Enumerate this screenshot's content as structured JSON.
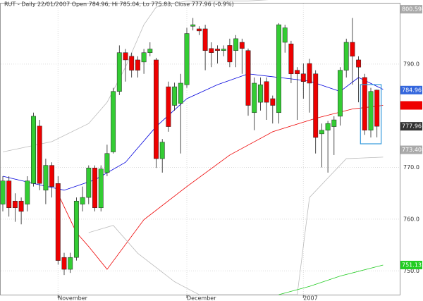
{
  "chart_data": {
    "type": "candlestick",
    "title": "RUT - Daily 22/01/2007 Open 784.96, Hi 785.04, Lo 775.83, Close 777.96 (-0.9%)",
    "up_color": "#33cc33",
    "down_color": "#ee0000",
    "ylim": [
      745.4,
      801.7
    ],
    "yticks": [
      {
        "value": 750,
        "label": "750.0"
      },
      {
        "value": 760,
        "label": "760.0"
      },
      {
        "value": 770,
        "label": "770.0"
      },
      {
        "value": 790,
        "label": "790.0"
      }
    ],
    "grid": true,
    "xlabels": [
      {
        "index": 9,
        "label": "November"
      },
      {
        "index": 30,
        "label": "December"
      },
      {
        "index": 49,
        "label": "2007"
      }
    ],
    "open": [
      762.9,
      767.4,
      763.5,
      763.5,
      762.9,
      766.9,
      778.0,
      765.6,
      770.4,
      766.9,
      752.6,
      750.3,
      752.6,
      762.9,
      764.2,
      769.9,
      762.2,
      769.0,
      773.0,
      784.7,
      792.2,
      791.5,
      790.8,
      790.4,
      792.2,
      790.8,
      771.7,
      785.6,
      782.0,
      782.4,
      786.0,
      797.3,
      796.8,
      796.8,
      793.0,
      792.9,
      792.6,
      793.6,
      792.6,
      794.2,
      792.6,
      780.6,
      782.6,
      786.6,
      783.3,
      780.6,
      794.2,
      793.9,
      788.8,
      788.1,
      790.1,
      788.1,
      776.5,
      777.2,
      777.9,
      779.9,
      788.8,
      794.2,
      790.8,
      787.4,
      777.2,
      784.96
    ],
    "high": [
      768.3,
      768.3,
      765.0,
      764.2,
      768.3,
      780.6,
      779.2,
      771.7,
      771.0,
      768.3,
      753.5,
      753.5,
      764.2,
      766.3,
      770.4,
      770.4,
      770.4,
      774.4,
      785.4,
      793.6,
      792.9,
      792.2,
      791.5,
      792.9,
      794.2,
      791.2,
      775.5,
      786.6,
      786.4,
      788.1,
      797.0,
      798.9,
      797.3,
      797.6,
      794.2,
      793.6,
      793.6,
      794.9,
      795.6,
      794.9,
      793.0,
      787.4,
      787.4,
      787.4,
      783.9,
      797.9,
      797.6,
      794.5,
      789.4,
      790.1,
      791.0,
      788.8,
      778.5,
      779.0,
      779.9,
      789.4,
      794.9,
      798.9,
      791.5,
      788.1,
      785.4,
      785.04
    ],
    "low": [
      761.5,
      760.5,
      759.5,
      759.0,
      761.5,
      766.3,
      765.6,
      762.9,
      764.2,
      751.2,
      749.2,
      749.6,
      752.0,
      761.5,
      762.9,
      761.5,
      761.5,
      768.3,
      772.7,
      784.0,
      786.6,
      787.4,
      787.4,
      788.1,
      791.5,
      769.9,
      769.0,
      776.9,
      781.0,
      772.7,
      785.4,
      796.5,
      795.6,
      788.8,
      789.4,
      790.1,
      791.5,
      789.4,
      789.4,
      788.1,
      780.0,
      777.2,
      781.0,
      779.2,
      778.5,
      778.5,
      792.2,
      786.3,
      779.2,
      783.3,
      780.6,
      772.7,
      770.0,
      769.0,
      772.4,
      778.1,
      787.4,
      786.0,
      782.6,
      776.3,
      775.8,
      775.83
    ],
    "close": [
      767.4,
      762.2,
      762.2,
      761.5,
      767.4,
      779.9,
      766.9,
      770.4,
      766.3,
      752.0,
      750.3,
      752.6,
      763.5,
      764.2,
      769.9,
      762.2,
      769.7,
      772.7,
      784.7,
      792.2,
      790.8,
      788.8,
      788.8,
      792.2,
      792.9,
      771.7,
      774.9,
      777.9,
      785.6,
      786.3,
      795.9,
      797.6,
      796.4,
      792.6,
      792.2,
      792.6,
      792.9,
      790.4,
      794.9,
      793.0,
      782.0,
      786.3,
      786.0,
      782.6,
      782.0,
      797.6,
      797.0,
      788.1,
      788.1,
      786.6,
      786.3,
      775.8,
      777.2,
      778.5,
      779.2,
      788.8,
      794.2,
      791.5,
      789.4,
      777.2,
      784.7,
      777.96
    ],
    "lines": [
      {
        "color": "#0000dd",
        "x": [
          0,
          5,
          10,
          15,
          20,
          25,
          30,
          35,
          40,
          45,
          50,
          55,
          58,
          62
        ],
        "values": [
          768.3,
          766.9,
          765.6,
          767.6,
          771.0,
          777.9,
          783.3,
          786.0,
          788.1,
          787.4,
          786.7,
          784.7,
          787.4,
          785.1
        ]
      },
      {
        "color": "#ee0000",
        "x": [
          9,
          12,
          14,
          17,
          23,
          30,
          37,
          44,
          51,
          57,
          62
        ],
        "values": [
          764.9,
          757.4,
          754.7,
          750.3,
          759.9,
          766.3,
          772.4,
          776.9,
          779.5,
          781.3,
          782.0
        ]
      },
      {
        "color": "#bbbbbb",
        "x": [
          0,
          8,
          14,
          17,
          20,
          23,
          25,
          30,
          40,
          50,
          55,
          62
        ],
        "values": [
          773.0,
          775.0,
          778.5,
          782.6,
          789.4,
          797.6,
          801.0,
          802.2,
          802.2,
          802.9,
          802.9,
          802.6
        ]
      },
      {
        "color": "#bbbbbb",
        "x": [
          14,
          18,
          22,
          28,
          32,
          48,
          50,
          56,
          62
        ],
        "values": [
          757.4,
          758.8,
          753.4,
          747.9,
          745.4,
          745.4,
          764.2,
          771.7,
          772.0
        ]
      },
      {
        "color": "#22cc22",
        "x": [
          45,
          50,
          55,
          62
        ],
        "values": [
          745.4,
          747.0,
          749.0,
          751.13
        ]
      }
    ],
    "markers": [
      {
        "value": 800.598,
        "color": "#aaaaaa"
      },
      {
        "value": 784.961,
        "color": "#3366dd"
      },
      {
        "value": 777.96,
        "color": "#333333"
      },
      {
        "value": 773.408,
        "color": "#aaaaaa"
      },
      {
        "value": 751.132,
        "color": "#22cc22"
      }
    ]
  }
}
